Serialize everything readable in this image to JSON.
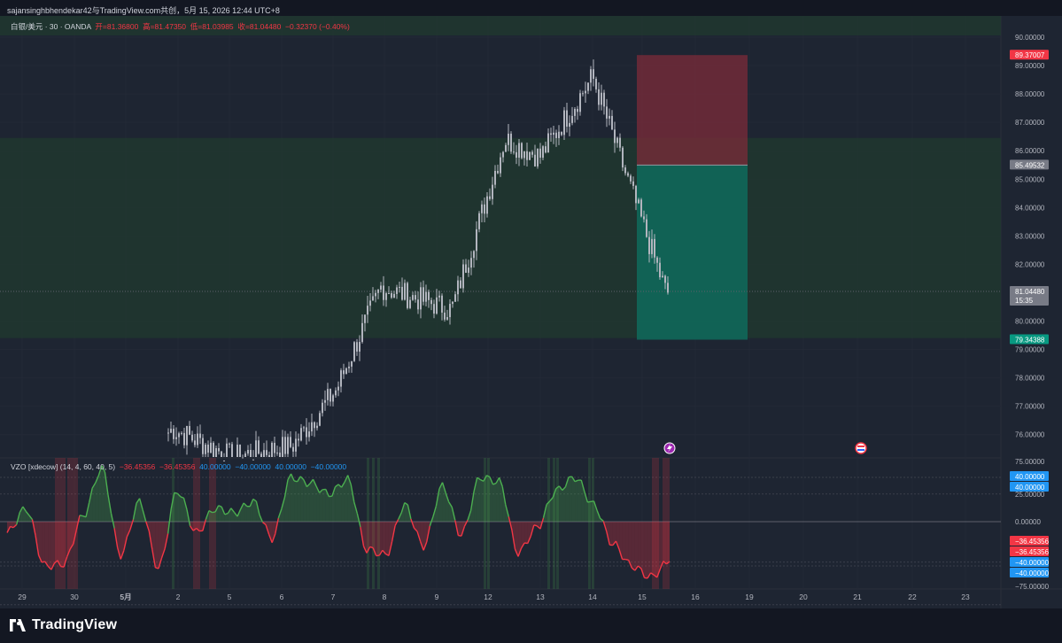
{
  "header": {
    "text": "sajansinghbhendekar42与TradingView.com共创，5月 15, 2026 12:44 UTC+8"
  },
  "legend": {
    "symbol": "白银/美元 · 30 · OANDA",
    "open": "开=81.36800",
    "high": "高=81.47350",
    "low": "低=81.03985",
    "close": "收=81.04480",
    "change": "−0.32370 (−0.40%)"
  },
  "vzo_legend": {
    "name": "VZO [xdecow] (14, 4, 60, 40, 5)",
    "v1": "−36.45356",
    "v2": "−36.45356",
    "v3": "40.00000",
    "v4": "−40.00000",
    "v5": "40.00000",
    "v6": "−40.00000"
  },
  "price_axis": {
    "ticks": [
      "90.00000",
      "89.00000",
      "88.00000",
      "87.00000",
      "86.00000",
      "85.00000",
      "84.00000",
      "83.00000",
      "82.00000",
      "81.00000",
      "80.00000",
      "79.00000",
      "78.00000",
      "77.00000",
      "76.00000"
    ],
    "labels": [
      {
        "text": "89.37007",
        "value": 89.37007,
        "color": "#f23645"
      },
      {
        "text": "85.49532",
        "value": 85.49532,
        "color": "#787b86"
      },
      {
        "text": "81.04480",
        "sub": "15:35",
        "value": 81.0448,
        "color": "#787b86"
      },
      {
        "text": "79.34388",
        "value": 79.34388,
        "color": "#089981"
      }
    ]
  },
  "vzo_axis": {
    "ticks": [
      "75.00000",
      "25.00000",
      "0.00000",
      "−75.00000"
    ],
    "labels": [
      {
        "text": "40.00000",
        "value": 40,
        "color": "#2196f3"
      },
      {
        "text": "40.00000",
        "value": 40,
        "color": "#2196f3"
      },
      {
        "text": "−36.45356",
        "value": -36.45,
        "color": "#f23645"
      },
      {
        "text": "−36.45356",
        "value": -36.45,
        "color": "#f23645"
      },
      {
        "text": "−40.00000",
        "value": -40,
        "color": "#2196f3"
      },
      {
        "text": "−40.00000",
        "value": -40,
        "color": "#2196f3"
      }
    ]
  },
  "time_axis": [
    "29",
    "30",
    "5月",
    "2",
    "5",
    "6",
    "7",
    "8",
    "9",
    "12",
    "13",
    "14",
    "15",
    "16",
    "19",
    "20",
    "21",
    "22",
    "23"
  ],
  "position": {
    "entry": 85.49532,
    "stop": 89.37007,
    "target": 79.34388
  },
  "colors": {
    "up": "#4caf50",
    "down": "#f23645",
    "candle": "#b2b5be",
    "background": "#1e2532"
  },
  "chart_data": {
    "type": "line",
    "title": "白银/美元 · 30 · OANDA",
    "ylim": [
      74.6,
      90.5
    ],
    "x": [
      "29",
      "30",
      "5月",
      "2",
      "5",
      "6",
      "7",
      "8",
      "9",
      "12",
      "13",
      "14",
      "15"
    ],
    "series": [
      {
        "values": [
          75.4,
          75.0,
          74.9,
          76.2,
          75.2,
          75.6,
          77.6,
          81.2,
          80.4,
          86.4,
          85.8,
          88.6,
          81.0
        ]
      }
    ],
    "vzo": {
      "ylim": [
        -78,
        80
      ],
      "values": [
        -10,
        12,
        -40,
        -38,
        5,
        48,
        -30,
        18,
        -42,
        28,
        -10,
        12,
        8,
        18,
        -15,
        40,
        35,
        25,
        38,
        -25,
        -30,
        15,
        -22,
        32,
        -12,
        40,
        36,
        -28,
        -5,
        28,
        40,
        15,
        -20,
        -40,
        -50,
        -36
      ]
    }
  },
  "footer": {
    "logo_text": "TradingView"
  }
}
